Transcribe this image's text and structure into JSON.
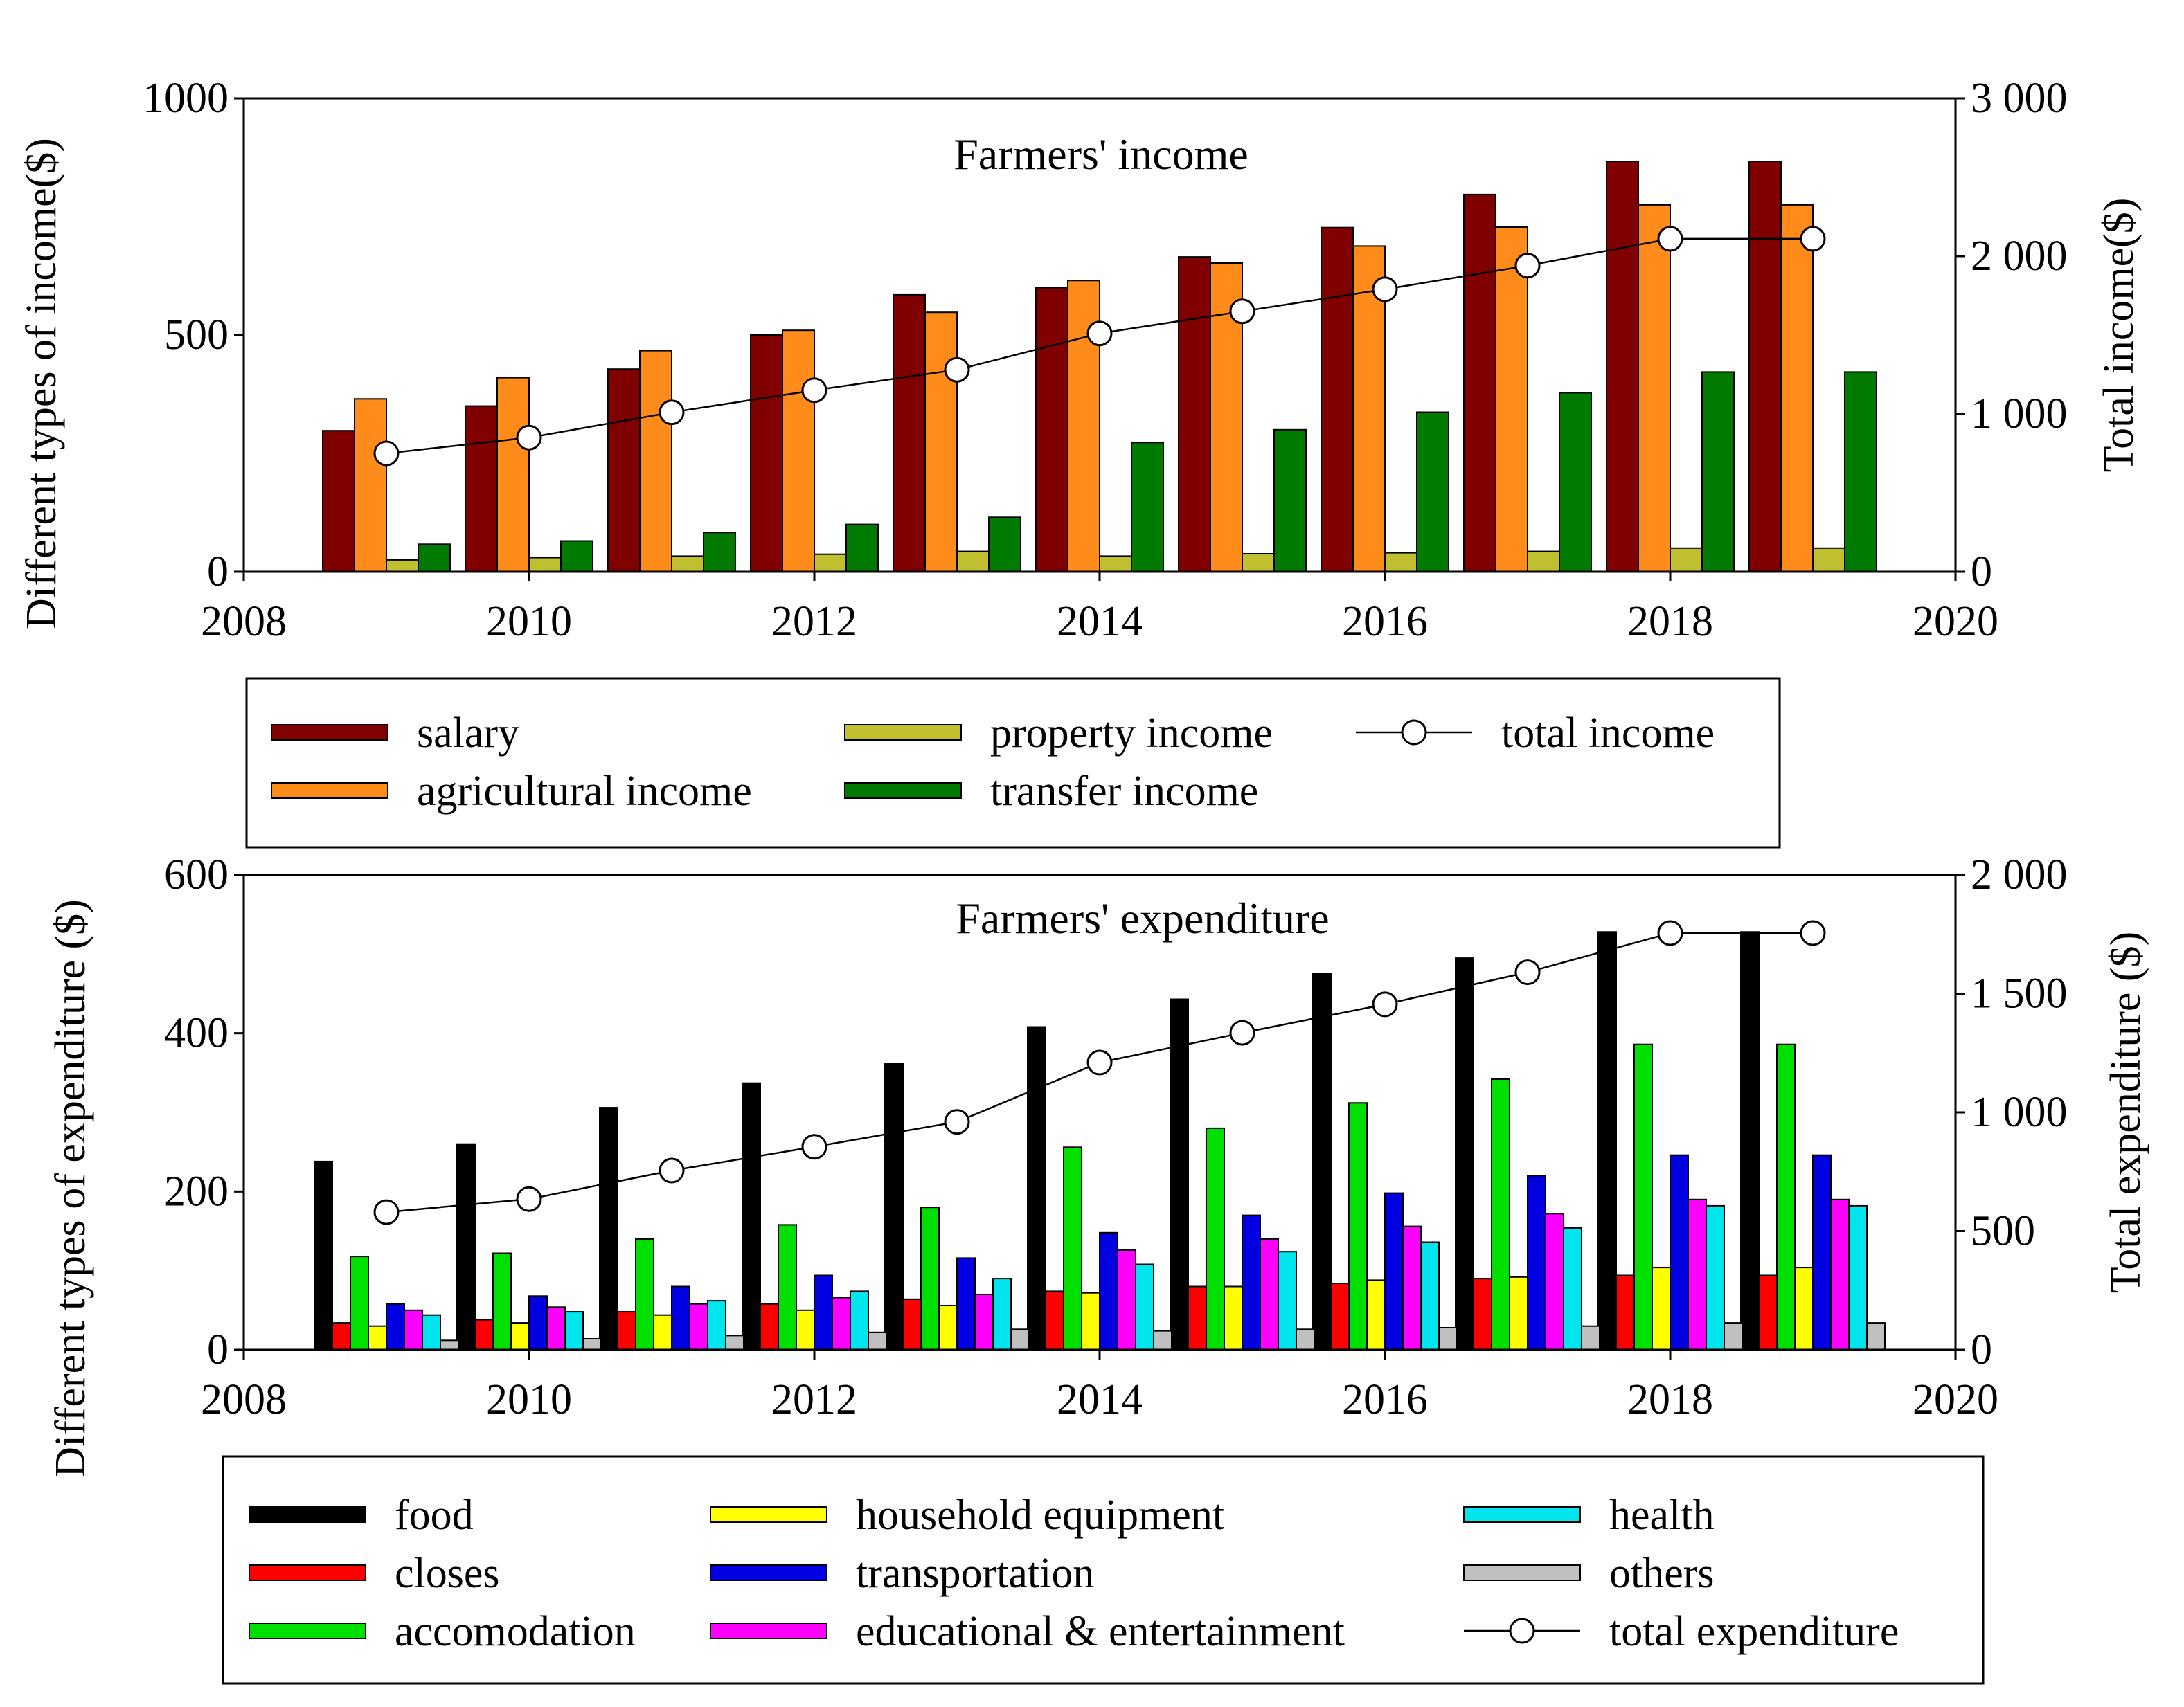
{
  "colors": {
    "salary": "#800000",
    "agricultural income": "#ff8c1a",
    "property income": "#bfbf2f",
    "transfer income": "#007a00",
    "food": "#000000",
    "closes": "#ff0000",
    "accomodation": "#00e000",
    "household equipment": "#ffff00",
    "transportation": "#0000e0",
    "educational & entertainment": "#ff00ff",
    "health": "#00e5ee",
    "others": "#c0c0c0"
  },
  "chart_data": [
    {
      "type": "bar",
      "title": "Farmers' income",
      "xlabel": "",
      "ylabel": "Different types of income($)",
      "y2label": "Total income($)",
      "xlim": [
        2008,
        2020
      ],
      "ylim": [
        0,
        1000
      ],
      "y2lim": [
        0,
        3000
      ],
      "xticks": [
        "2008",
        "2010",
        "2012",
        "2014",
        "2016",
        "2018",
        "2020"
      ],
      "yticks": [
        "0",
        "500",
        "1000"
      ],
      "y2ticks": [
        "0",
        "1 000",
        "2 000",
        "3 000"
      ],
      "x": [
        2009,
        2010,
        2011,
        2012,
        2013,
        2014,
        2015,
        2016,
        2017,
        2018,
        2019
      ],
      "series": [
        {
          "name": "salary",
          "values": [
            298,
            350,
            428,
            500,
            585,
            600,
            665,
            727,
            797,
            867,
            867
          ]
        },
        {
          "name": "agricultural income",
          "values": [
            365,
            410,
            467,
            510,
            548,
            615,
            652,
            688,
            728,
            775,
            775
          ]
        },
        {
          "name": "property income",
          "values": [
            25,
            30,
            33,
            37,
            43,
            33,
            38,
            40,
            43,
            50,
            50
          ]
        },
        {
          "name": "transfer income",
          "values": [
            58,
            65,
            83,
            100,
            115,
            273,
            300,
            337,
            378,
            422,
            422
          ]
        }
      ],
      "line": {
        "name": "total income",
        "axis": "right",
        "values": [
          750,
          850,
          1010,
          1150,
          1280,
          1510,
          1650,
          1790,
          1940,
          2110,
          2110
        ]
      },
      "legend": [
        "salary",
        "agricultural income",
        "property income",
        "transfer income",
        "total income"
      ]
    },
    {
      "type": "bar",
      "title": "Farmers' expenditure",
      "xlabel": "",
      "ylabel": "Different types of expenditure ($)",
      "y2label": "Total expenditure ($)",
      "xlim": [
        2008,
        2020
      ],
      "ylim": [
        0,
        600
      ],
      "y2lim": [
        0,
        2000
      ],
      "xticks": [
        "2008",
        "2010",
        "2012",
        "2014",
        "2016",
        "2018",
        "2020"
      ],
      "yticks": [
        "0",
        "200",
        "400",
        "600"
      ],
      "y2ticks": [
        "0",
        "500",
        "1 000",
        "1 500",
        "2 000"
      ],
      "x": [
        2009,
        2010,
        2011,
        2012,
        2013,
        2014,
        2015,
        2016,
        2017,
        2018,
        2019
      ],
      "series": [
        {
          "name": "food",
          "values": [
            238,
            260,
            306,
            337,
            362,
            408,
            443,
            475,
            495,
            528,
            528
          ]
        },
        {
          "name": "closes",
          "values": [
            34,
            38,
            48,
            58,
            64,
            74,
            80,
            84,
            90,
            94,
            94
          ]
        },
        {
          "name": "accomodation",
          "values": [
            118,
            122,
            140,
            158,
            180,
            256,
            280,
            312,
            342,
            386,
            386
          ]
        },
        {
          "name": "household equipment",
          "values": [
            30,
            34,
            44,
            50,
            56,
            72,
            80,
            88,
            92,
            104,
            104
          ]
        },
        {
          "name": "transportation",
          "values": [
            58,
            68,
            80,
            94,
            116,
            148,
            170,
            198,
            220,
            246,
            246
          ]
        },
        {
          "name": "educational & entertainment",
          "values": [
            50,
            54,
            58,
            66,
            70,
            126,
            140,
            156,
            172,
            190,
            190
          ]
        },
        {
          "name": "health",
          "values": [
            44,
            48,
            62,
            74,
            90,
            108,
            124,
            136,
            154,
            182,
            182
          ]
        },
        {
          "name": "others",
          "values": [
            12,
            14,
            18,
            22,
            26,
            24,
            26,
            28,
            30,
            34,
            34
          ]
        }
      ],
      "line": {
        "name": "total expenditure",
        "axis": "right",
        "values": [
          580,
          635,
          755,
          855,
          960,
          1210,
          1335,
          1455,
          1590,
          1755,
          1755
        ]
      },
      "legend": [
        "food",
        "closes",
        "accomodation",
        "household equipment",
        "transportation",
        "educational & entertainment",
        "health",
        "others",
        "total expenditure"
      ]
    }
  ]
}
